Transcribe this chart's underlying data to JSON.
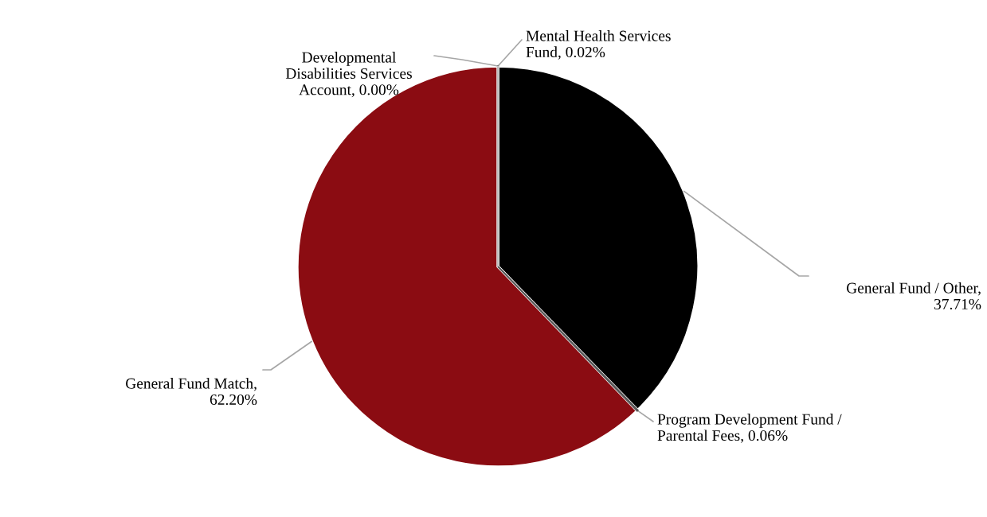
{
  "chart_data": {
    "type": "pie",
    "categories": [
      "Mental Health Services\nFund, 0.02%",
      "General Fund / Other,\n37.71%",
      "Program Development Fund /\nParental Fees, 0.06%",
      "General Fund Match,\n62.20%",
      "Developmental\nDisabilities Services\nAccount, 0.00%"
    ],
    "values": [
      0.02,
      37.71,
      0.06,
      62.2,
      0.0
    ],
    "colors": [
      "#7f7f7f",
      "#000000",
      "#595959",
      "#8b0c12",
      "#bfbfbf"
    ]
  }
}
